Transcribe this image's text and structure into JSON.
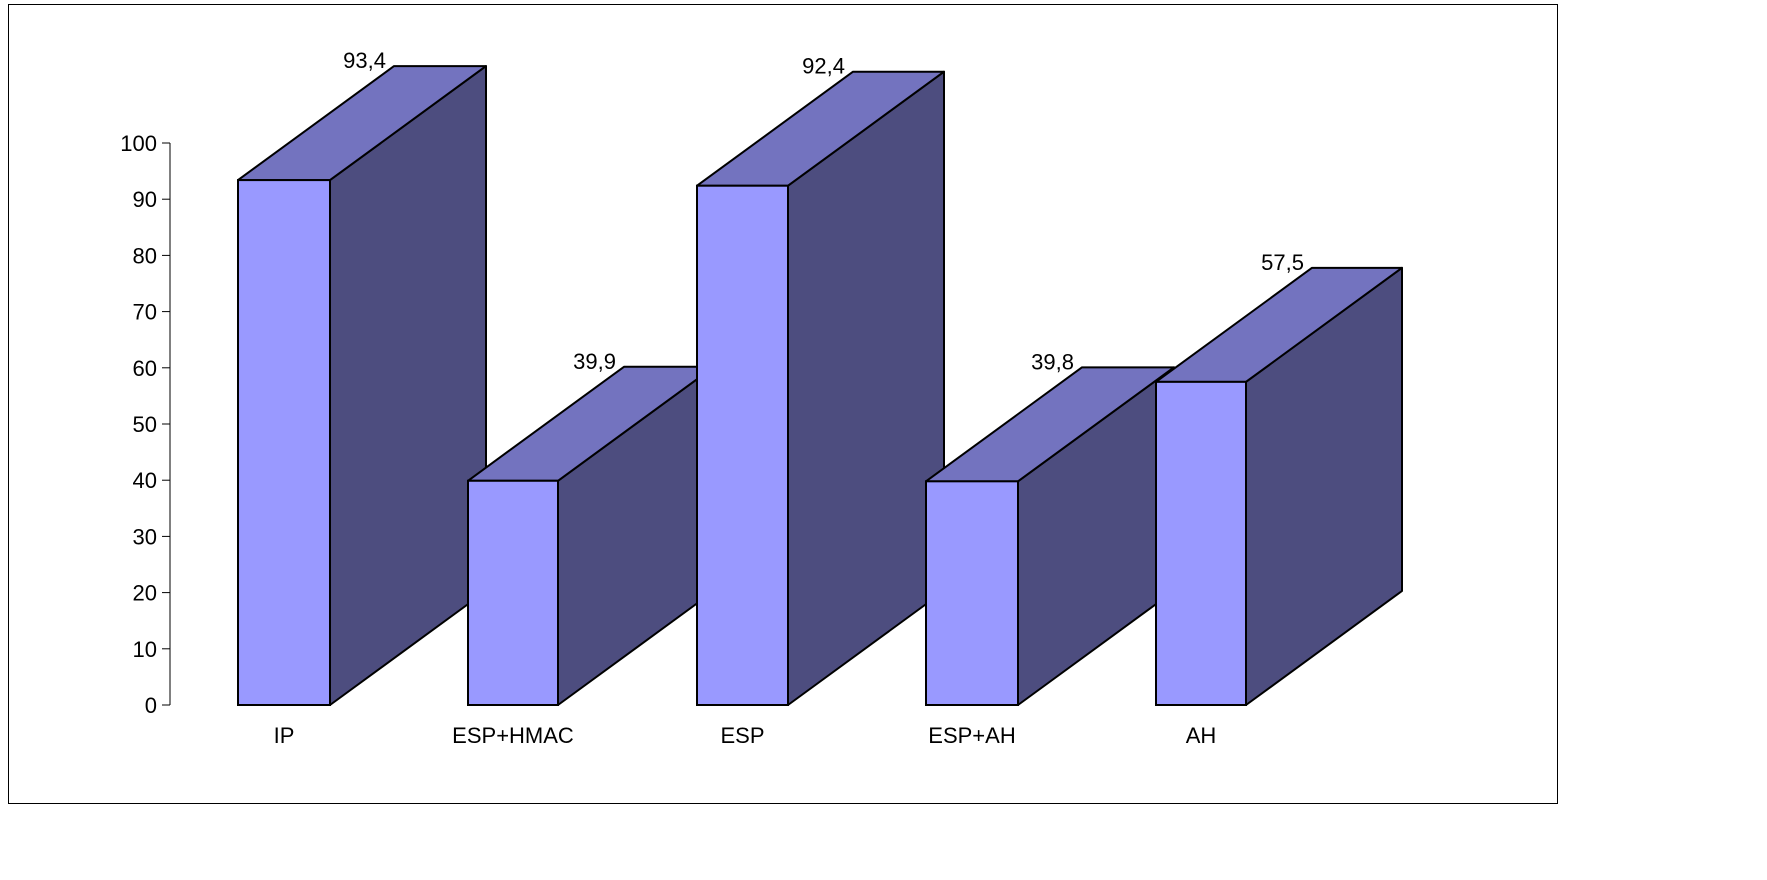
{
  "chart_data": {
    "type": "bar",
    "style": "3d-column",
    "title": "",
    "xlabel": "",
    "ylabel": "",
    "categories": [
      "IP",
      "ESP+HMAC",
      "ESP",
      "ESP+AH",
      "AH"
    ],
    "values": [
      93.4,
      39.9,
      92.4,
      39.8,
      57.5
    ],
    "value_labels": [
      "93,4",
      "39,9",
      "92,4",
      "39,8",
      "57,5"
    ],
    "ylim": [
      0,
      100
    ],
    "yticks": [
      "0",
      "10",
      "20",
      "30",
      "40",
      "50",
      "60",
      "70",
      "80",
      "90",
      "100"
    ],
    "grid": false,
    "legend": "none",
    "colors": {
      "front": "#9999ff",
      "top": "#7373bf",
      "side": "#4d4d7f",
      "outline": "#000000"
    }
  }
}
